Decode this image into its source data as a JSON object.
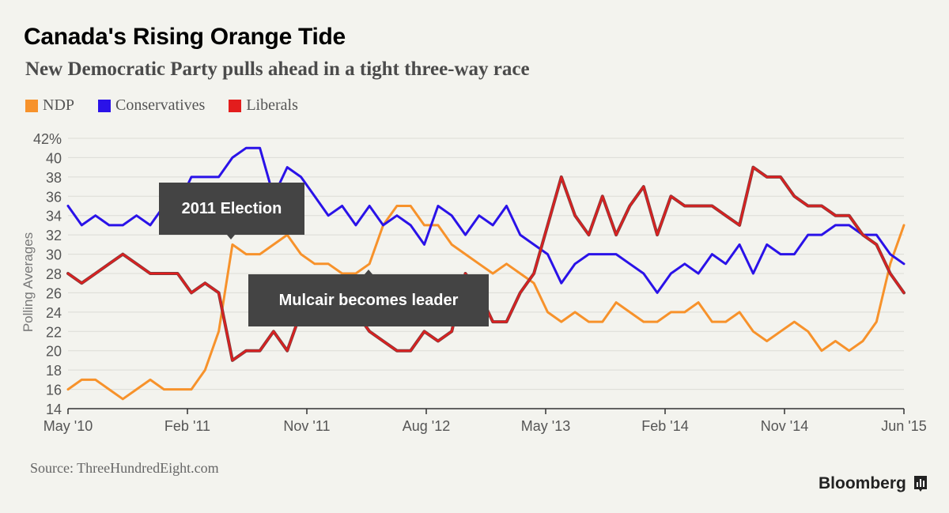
{
  "title": "Canada's Rising Orange Tide",
  "subtitle": "New Democratic Party pulls ahead in a tight three-way race",
  "source": "Source: ThreeHundredEight.com",
  "brand": "Bloomberg",
  "brand_icon": "bloomberg-chart-icon",
  "annotations": {
    "election": "2011 Election",
    "mulcair": "Mulcair becomes leader"
  },
  "chart_data": {
    "type": "line",
    "ylabel": "Polling Averages",
    "xlabel": "",
    "ylim": [
      14,
      42
    ],
    "yticks": [
      14,
      16,
      18,
      20,
      22,
      24,
      26,
      28,
      30,
      32,
      34,
      36,
      38,
      40,
      42
    ],
    "ytick_labels": [
      "14",
      "16",
      "18",
      "20",
      "22",
      "24",
      "26",
      "28",
      "30",
      "32",
      "34",
      "36",
      "38",
      "40",
      "42%"
    ],
    "x_start": "May '10",
    "x_end": "Jun '15",
    "xtick_labels": [
      "May '10",
      "Feb '11",
      "Nov '11",
      "Aug '12",
      "May '13",
      "Feb '14",
      "Nov '14",
      "Jun '15"
    ],
    "grid": "horizontal",
    "legend_position": "top-left",
    "series": [
      {
        "name": "NDP",
        "color": "#f7922b",
        "values": [
          16,
          17,
          17,
          16,
          15,
          16,
          17,
          16,
          16,
          16,
          18,
          22,
          31,
          30,
          30,
          31,
          32,
          30,
          29,
          29,
          28,
          28,
          29,
          33,
          35,
          35,
          33,
          33,
          31,
          30,
          29,
          28,
          29,
          28,
          27,
          24,
          23,
          24,
          23,
          23,
          25,
          24,
          23,
          23,
          24,
          24,
          25,
          23,
          23,
          24,
          22,
          21,
          22,
          23,
          22,
          20,
          21,
          20,
          21,
          23,
          29,
          33
        ]
      },
      {
        "name": "Conservatives",
        "color": "#2a12e8",
        "values": [
          35,
          33,
          34,
          33,
          33,
          34,
          33,
          35,
          35,
          38,
          38,
          38,
          40,
          41,
          41,
          36,
          39,
          38,
          36,
          34,
          35,
          33,
          35,
          33,
          34,
          33,
          31,
          35,
          34,
          32,
          34,
          33,
          35,
          32,
          31,
          30,
          27,
          29,
          30,
          30,
          30,
          29,
          28,
          26,
          28,
          29,
          28,
          30,
          29,
          31,
          28,
          31,
          30,
          30,
          32,
          32,
          33,
          33,
          32,
          32,
          30,
          29
        ]
      },
      {
        "name": "Liberals",
        "color": "#e31d1d",
        "values": [
          28,
          27,
          28,
          29,
          30,
          29,
          28,
          28,
          28,
          26,
          27,
          26,
          19,
          20,
          20,
          22,
          20,
          24,
          24,
          23,
          24,
          24,
          22,
          21,
          20,
          20,
          22,
          21,
          22,
          28,
          26,
          23,
          23,
          26,
          28,
          33,
          38,
          34,
          32,
          36,
          32,
          35,
          37,
          32,
          36,
          35,
          35,
          35,
          34,
          33,
          39,
          38,
          38,
          36,
          35,
          35,
          34,
          34,
          32,
          31,
          28,
          26
        ]
      }
    ]
  }
}
